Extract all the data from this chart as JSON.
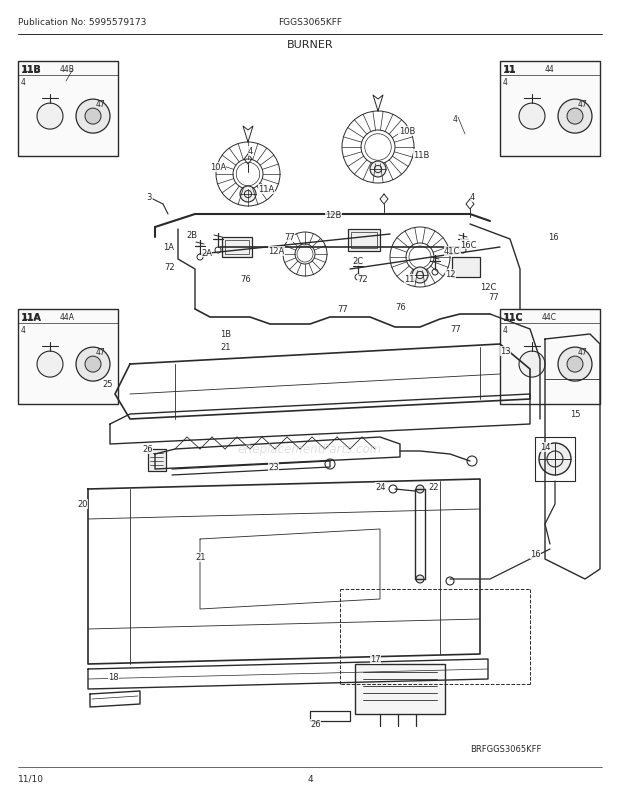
{
  "title": "BURNER",
  "pub_no": "Publication No: 5995579173",
  "model": "FGGS3065KFF",
  "page": "4",
  "date": "11/10",
  "footer": "BRFGGS3065KFF",
  "watermark": "eReplacementParts.com",
  "bg_color": "#ffffff",
  "lc": "#2a2a2a",
  "fig_width": 6.2,
  "fig_height": 8.03,
  "dpi": 100
}
